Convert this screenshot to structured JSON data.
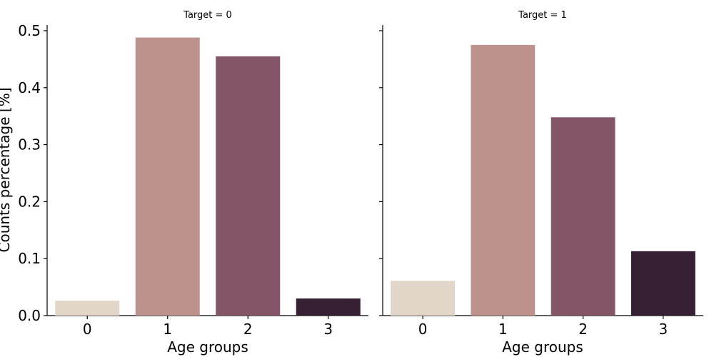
{
  "chart_data": {
    "type": "bar",
    "ylabel": "Counts percentage [%]",
    "ylim": [
      0,
      0.51
    ],
    "yticks": [
      "0.0",
      "0.1",
      "0.2",
      "0.3",
      "0.4",
      "0.5"
    ],
    "ytick_values": [
      0,
      0.1,
      0.2,
      0.3,
      0.4,
      0.5
    ],
    "sharey": true,
    "grid": false,
    "bar_colors": [
      "#e2d6c8",
      "#bd918c",
      "#845569",
      "#351f33"
    ],
    "panels": [
      {
        "title": "Target = 0",
        "xlabel": "Age groups",
        "categories": [
          "0",
          "1",
          "2",
          "3"
        ],
        "values": [
          0.026,
          0.488,
          0.455,
          0.03
        ]
      },
      {
        "title": "Target = 1",
        "xlabel": "Age groups",
        "categories": [
          "0",
          "1",
          "2",
          "3"
        ],
        "values": [
          0.061,
          0.475,
          0.348,
          0.113
        ]
      }
    ]
  }
}
